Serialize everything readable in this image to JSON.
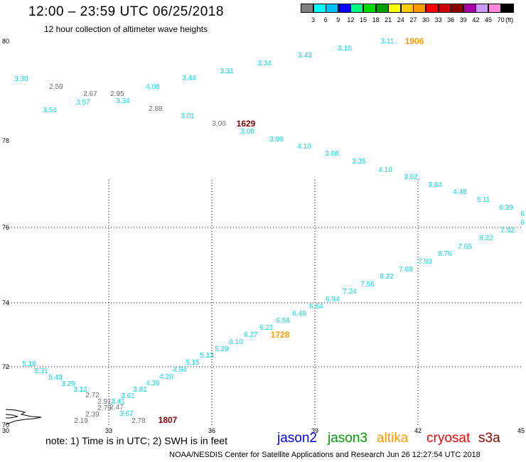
{
  "header": {
    "title": "12:00 – 23:59 UTC 06/25/2018",
    "subtitle": "12 hour collection of altimeter wave heights"
  },
  "scale": {
    "labels": [
      "3",
      "6",
      "9",
      "12",
      "15",
      "18",
      "21",
      "24",
      "27",
      "30",
      "33",
      "36",
      "39",
      "42",
      "45",
      "70"
    ],
    "unit": "(ft)",
    "colors": [
      "#808080",
      "#00ffff",
      "#00bfff",
      "#0000ff",
      "#00ff7f",
      "#00dd00",
      "#00a000",
      "#ffff00",
      "#ffcc00",
      "#ff9900",
      "#ff0000",
      "#cc0000",
      "#8b0000",
      "#aa00aa",
      "#cc99ff",
      "#ff88dd",
      "#000000"
    ]
  },
  "map": {
    "lat_labels": [
      "80",
      "78",
      "76",
      "74",
      "72",
      "70"
    ],
    "lon_labels": [
      "30",
      "33",
      "36",
      "39",
      "42",
      "45"
    ],
    "grid": true,
    "colors": {
      "cyan": "#00d8e8",
      "gray": "#707070",
      "orange": "#ff9900",
      "darkred": "#8b0000"
    },
    "passes": [
      {
        "time": "1906",
        "color": "#ff9900",
        "track": [
          [
            "3.30",
            "cyan"
          ],
          [
            "2.59",
            "gray"
          ],
          [
            "3.54",
            "cyan"
          ],
          [
            "2.67",
            "gray"
          ],
          [
            "3.57",
            "cyan"
          ],
          [
            "2.95",
            "gray"
          ],
          [
            "3.34",
            "cyan"
          ],
          [
            "4.08",
            "cyan"
          ],
          [
            "2.88",
            "gray"
          ],
          [
            "3.44",
            "cyan"
          ],
          [
            "3.01",
            "cyan"
          ],
          [
            "3.31",
            "cyan"
          ],
          [
            "3.34",
            "cyan"
          ],
          [
            "3.43",
            "cyan"
          ],
          [
            "3.10",
            "cyan"
          ],
          [
            "3.11",
            "cyan"
          ]
        ]
      },
      {
        "time": "1629",
        "color": "#8b0000",
        "track": [
          [
            "3.00",
            "gray"
          ],
          [
            "3.08",
            "cyan"
          ],
          [
            "3.99",
            "cyan"
          ],
          [
            "4.10",
            "cyan"
          ],
          [
            "3.68",
            "cyan"
          ],
          [
            "3.35",
            "cyan"
          ],
          [
            "4.10",
            "cyan"
          ],
          [
            "3.62",
            "cyan"
          ],
          [
            "3.84",
            "cyan"
          ],
          [
            "4.48",
            "cyan"
          ],
          [
            "5.11",
            "cyan"
          ],
          [
            "6.39",
            "cyan"
          ],
          [
            "6",
            "cyan"
          ],
          [
            "6",
            "cyan"
          ]
        ]
      },
      {
        "time": "1728",
        "color": "#ff9900",
        "track": [
          [
            "7.92",
            "cyan"
          ],
          [
            "8.22",
            "cyan"
          ],
          [
            "7.65",
            "cyan"
          ],
          [
            "8.76",
            "cyan"
          ],
          [
            "7.93",
            "cyan"
          ],
          [
            "7.69",
            "cyan"
          ],
          [
            "8.22",
            "cyan"
          ],
          [
            "7.56",
            "cyan"
          ],
          [
            "7.24",
            "cyan"
          ],
          [
            "6.94",
            "cyan"
          ],
          [
            "6.64",
            "cyan"
          ],
          [
            "6.49",
            "cyan"
          ],
          [
            "6.56",
            "cyan"
          ],
          [
            "6.21",
            "cyan"
          ],
          [
            "6.27",
            "cyan"
          ],
          [
            "6.10",
            "cyan"
          ],
          [
            "5.29",
            "cyan"
          ],
          [
            "5.13",
            "cyan"
          ],
          [
            "5.15",
            "cyan"
          ],
          [
            "4.94",
            "cyan"
          ],
          [
            "4.20",
            "cyan"
          ],
          [
            "4.39",
            "cyan"
          ],
          [
            "3.81",
            "cyan"
          ],
          [
            "3.61",
            "cyan"
          ],
          [
            "3.41",
            "cyan"
          ],
          [
            "3.67",
            "cyan"
          ]
        ]
      },
      {
        "time": "1807",
        "color": "#8b0000",
        "track": [
          [
            "5.18",
            "cyan"
          ],
          [
            "5.31",
            "cyan"
          ],
          [
            "5.43",
            "cyan"
          ],
          [
            "3.29",
            "cyan"
          ],
          [
            "3.12",
            "cyan"
          ],
          [
            "2.72",
            "gray"
          ],
          [
            "2.91",
            "gray"
          ],
          [
            "2.79",
            "gray"
          ],
          [
            "2.47",
            "gray"
          ],
          [
            "2.39",
            "gray"
          ],
          [
            "2.19",
            "gray"
          ],
          [
            "2.78",
            "gray"
          ]
        ]
      }
    ]
  },
  "footer": {
    "note": "note: 1) Time is in UTC; 2) SWH is in feet",
    "satellites": [
      {
        "name": "jason2",
        "color": "#0000ff"
      },
      {
        "name": "jason3",
        "color": "#00a000"
      },
      {
        "name": "altika",
        "color": "#ff9900"
      },
      {
        "name": "cryosat",
        "color": "#ff0000"
      },
      {
        "name": "s3a",
        "color": "#8b0000"
      }
    ],
    "credit": "NOAA/NESDIS Center for Satellite Applications and Research    Jun 26 12:27:54 UTC 2018"
  }
}
